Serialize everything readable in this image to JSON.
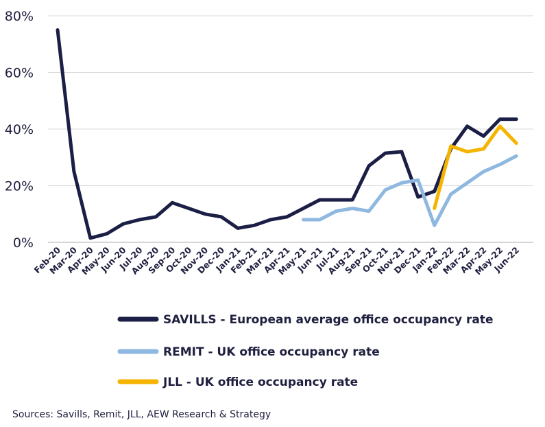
{
  "chart_data": {
    "type": "line",
    "x": [
      "Feb-20",
      "Mar-20",
      "Apr-20",
      "May-20",
      "Jun-20",
      "Jul-20",
      "Aug-20",
      "Sep-20",
      "Oct-20",
      "Nov-20",
      "Dec-20",
      "Jan-21",
      "Feb-21",
      "Mar-21",
      "Apr-21",
      "May-21",
      "Jun-21",
      "Jul-21",
      "Aug-21",
      "Sep-21",
      "Oct-21",
      "Nov-21",
      "Dec-21",
      "Jan-22",
      "Feb-22",
      "Mar-22",
      "Apr-22",
      "May-22",
      "Jun-22"
    ],
    "series": [
      {
        "name": "SAVILLS - European average office occupancy rate",
        "color": "#1c1f45",
        "values": [
          75,
          25,
          1.5,
          3,
          6.5,
          8,
          9,
          14,
          12,
          10,
          9,
          5,
          6,
          8,
          9,
          12,
          15,
          15,
          15,
          27,
          31.5,
          32,
          16,
          18,
          33,
          41,
          37.5,
          43.5,
          43.5
        ]
      },
      {
        "name": "REMIT - UK office occupancy rate",
        "color": "#8fb8e0",
        "values": [
          null,
          null,
          null,
          null,
          null,
          null,
          null,
          null,
          null,
          null,
          null,
          null,
          null,
          null,
          null,
          8,
          8,
          11,
          12,
          11,
          18.5,
          21,
          22,
          6,
          17,
          21,
          25,
          27.5,
          30.5
        ]
      },
      {
        "name": "JLL - UK office occupancy rate",
        "color": "#f5b400",
        "values": [
          null,
          null,
          null,
          null,
          null,
          null,
          null,
          null,
          null,
          null,
          null,
          null,
          null,
          null,
          null,
          null,
          null,
          null,
          null,
          null,
          null,
          null,
          null,
          12,
          34,
          32,
          33,
          41,
          35
        ]
      }
    ],
    "yticks": [
      "0%",
      "20%",
      "40%",
      "60%",
      "80%"
    ],
    "ylim": [
      0,
      80
    ],
    "grid": true,
    "legend_position": "bottom"
  },
  "source_note": "Sources: Savills, Remit, JLL, AEW Research & Strategy"
}
